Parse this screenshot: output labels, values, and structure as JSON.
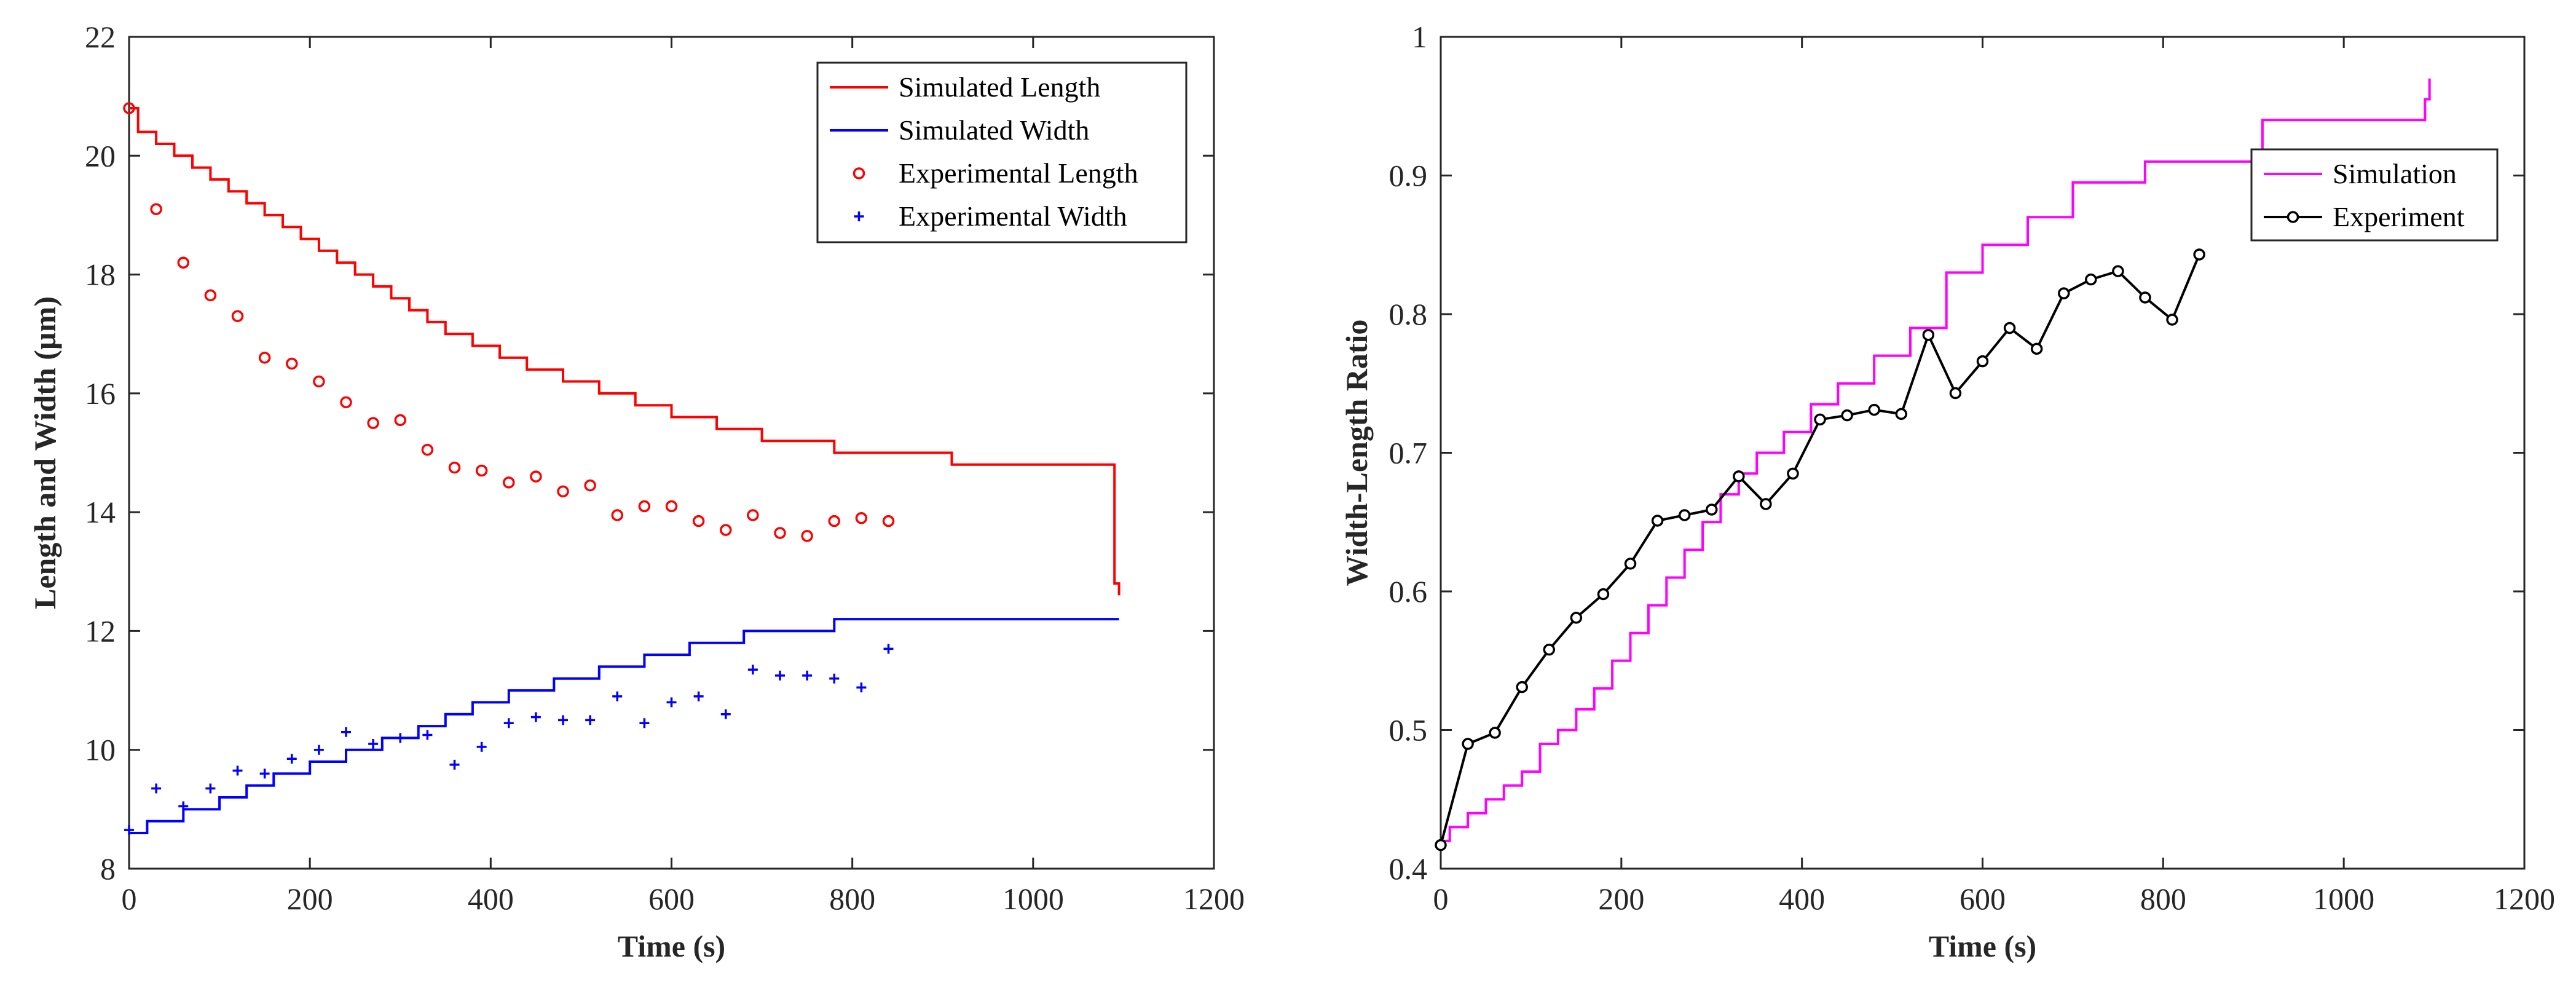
{
  "chart_data": [
    {
      "type": "line",
      "xlabel": "Time (s)",
      "ylabel": "Length and Width (µm)",
      "xlim": [
        0,
        1200
      ],
      "ylim": [
        8,
        22
      ],
      "xticks": [
        0,
        200,
        400,
        600,
        800,
        1000,
        1200
      ],
      "yticks": [
        8,
        10,
        12,
        14,
        16,
        18,
        20,
        22
      ],
      "grid": false,
      "legend_position": "top-right",
      "series": [
        {
          "name": "Simulated Length",
          "style": "stairs",
          "color": "#ff0000",
          "x": [
            0,
            10,
            30,
            50,
            70,
            90,
            110,
            130,
            150,
            170,
            190,
            210,
            230,
            250,
            270,
            290,
            310,
            330,
            350,
            380,
            410,
            440,
            480,
            520,
            560,
            600,
            650,
            700,
            780,
            910,
            1090,
            1095
          ],
          "y": [
            20.8,
            20.4,
            20.2,
            20.0,
            19.8,
            19.6,
            19.4,
            19.2,
            19.0,
            18.8,
            18.6,
            18.4,
            18.2,
            18.0,
            17.8,
            17.6,
            17.4,
            17.2,
            17.0,
            16.8,
            16.6,
            16.4,
            16.2,
            16.0,
            15.8,
            15.6,
            15.4,
            15.2,
            15.0,
            14.8,
            12.8,
            12.6
          ]
        },
        {
          "name": "Simulated Width",
          "style": "stairs",
          "color": "#0000ff",
          "x": [
            0,
            20,
            60,
            100,
            130,
            160,
            200,
            240,
            280,
            320,
            350,
            380,
            420,
            470,
            520,
            570,
            620,
            680,
            720,
            780,
            1095
          ],
          "y": [
            8.6,
            8.8,
            9.0,
            9.2,
            9.4,
            9.6,
            9.8,
            10.0,
            10.2,
            10.4,
            10.6,
            10.8,
            11.0,
            11.2,
            11.4,
            11.6,
            11.8,
            12.0,
            12.0,
            12.2,
            12.2
          ]
        },
        {
          "name": "Experimental Length",
          "style": "marker-circle",
          "color": "#ff0000",
          "x": [
            0,
            30,
            60,
            90,
            120,
            150,
            180,
            210,
            240,
            270,
            300,
            330,
            360,
            390,
            420,
            450,
            480,
            510,
            540,
            570,
            600,
            630,
            660,
            690,
            720,
            750,
            780,
            810,
            840
          ],
          "y": [
            20.8,
            19.1,
            18.2,
            17.65,
            17.3,
            16.6,
            16.5,
            16.2,
            15.85,
            15.5,
            15.55,
            15.05,
            14.75,
            14.7,
            14.5,
            14.6,
            14.35,
            14.45,
            13.95,
            14.1,
            14.1,
            13.85,
            13.7,
            13.95,
            13.65,
            13.6,
            13.85,
            13.9,
            13.85
          ]
        },
        {
          "name": "Experimental Width",
          "style": "marker-plus",
          "color": "#0000ff",
          "x": [
            0,
            30,
            60,
            90,
            120,
            150,
            180,
            210,
            240,
            270,
            300,
            330,
            360,
            390,
            420,
            450,
            480,
            510,
            540,
            570,
            600,
            630,
            660,
            690,
            720,
            750,
            780,
            810,
            840
          ],
          "y": [
            8.65,
            9.35,
            9.05,
            9.35,
            9.65,
            9.6,
            9.85,
            10.0,
            10.3,
            10.1,
            10.2,
            10.25,
            9.75,
            10.05,
            10.45,
            10.55,
            10.5,
            10.5,
            10.9,
            10.45,
            10.8,
            10.9,
            10.6,
            11.35,
            11.25,
            11.25,
            11.2,
            11.05,
            11.7
          ]
        }
      ]
    },
    {
      "type": "line",
      "xlabel": "Time (s)",
      "ylabel": "Width-Length Ratio",
      "xlim": [
        0,
        1200
      ],
      "ylim": [
        0.4,
        1.0
      ],
      "xticks": [
        0,
        200,
        400,
        600,
        800,
        1000,
        1200
      ],
      "yticks": [
        0.4,
        0.5,
        0.6,
        0.7,
        0.8,
        0.9,
        1.0
      ],
      "grid": false,
      "legend_position": "top-right",
      "series": [
        {
          "name": "Simulation",
          "style": "stairs",
          "color": "#ff00ff",
          "x": [
            0,
            10,
            30,
            50,
            70,
            90,
            110,
            130,
            150,
            170,
            190,
            210,
            230,
            250,
            270,
            290,
            310,
            330,
            350,
            380,
            410,
            440,
            480,
            520,
            560,
            600,
            650,
            700,
            780,
            910,
            1090,
            1095
          ],
          "y": [
            0.42,
            0.43,
            0.44,
            0.45,
            0.46,
            0.47,
            0.49,
            0.5,
            0.515,
            0.53,
            0.55,
            0.57,
            0.59,
            0.61,
            0.63,
            0.65,
            0.67,
            0.685,
            0.7,
            0.715,
            0.735,
            0.75,
            0.77,
            0.79,
            0.83,
            0.85,
            0.87,
            0.895,
            0.91,
            0.94,
            0.955,
            0.97
          ]
        },
        {
          "name": "Experiment",
          "style": "line-marker-circle",
          "color": "#000000",
          "x": [
            0,
            30,
            60,
            90,
            120,
            150,
            180,
            210,
            240,
            270,
            300,
            330,
            360,
            390,
            420,
            450,
            480,
            510,
            540,
            570,
            600,
            630,
            660,
            690,
            720,
            750,
            780,
            810,
            840
          ],
          "y": [
            0.417,
            0.49,
            0.498,
            0.531,
            0.558,
            0.581,
            0.598,
            0.62,
            0.651,
            0.655,
            0.659,
            0.683,
            0.663,
            0.685,
            0.724,
            0.727,
            0.731,
            0.728,
            0.785,
            0.743,
            0.766,
            0.79,
            0.775,
            0.815,
            0.825,
            0.831,
            0.812,
            0.796,
            0.843
          ]
        }
      ]
    }
  ]
}
